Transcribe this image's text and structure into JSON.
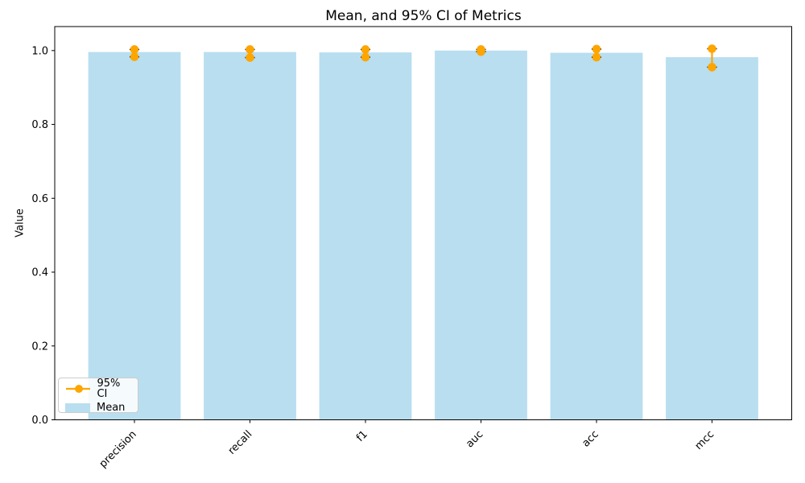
{
  "figure": {
    "title": "Mean, and 95% CI of Metrics",
    "ylabel": "Value"
  },
  "legend": {
    "ci_label": "95% CI",
    "mean_label": "Mean",
    "position": "lower left"
  },
  "chart_data": {
    "type": "bar",
    "title": "Mean, and 95% CI of Metrics",
    "xlabel": "",
    "ylabel": "Value",
    "categories": [
      "precision",
      "recall",
      "f1",
      "auc",
      "acc",
      "mcc"
    ],
    "series": [
      {
        "name": "Mean",
        "values": [
          0.996,
          0.996,
          0.995,
          1.0,
          0.994,
          0.982
        ]
      }
    ],
    "error_bars": {
      "name": "95% CI",
      "ci_low": [
        0.983,
        0.981,
        0.982,
        0.997,
        0.982,
        0.955
      ],
      "ci_high": [
        1.003,
        1.003,
        1.003,
        1.003,
        1.004,
        1.005
      ]
    },
    "ytick_labels": [
      "0.0",
      "0.2",
      "0.4",
      "0.6",
      "0.8",
      "1.0"
    ],
    "ylim": [
      0,
      1.065
    ],
    "bar_width_fraction": 0.8,
    "x_margin": 0.69,
    "grid": false,
    "legend_position": "lower left",
    "xtick_rotation_deg": 45,
    "colors": {
      "bar": "#b8def0",
      "ci_line": "#FFA500",
      "ci_cap": "#000000",
      "axis": "#000000",
      "text": "#000000",
      "background": "#ffffff"
    }
  }
}
